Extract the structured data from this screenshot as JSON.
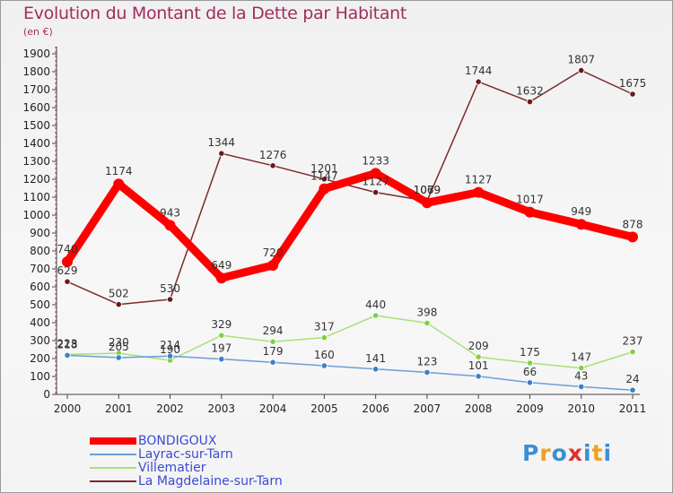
{
  "header": {
    "title": "Evolution du Montant de la Dette par Habitant",
    "unit": "(en €)"
  },
  "logo": {
    "letters": [
      "P",
      "r",
      "o",
      "x",
      "i",
      "t",
      "i"
    ],
    "colors": [
      "#3b8fd4",
      "#f0a020",
      "#3b8fd4",
      "#e03030",
      "#3b8fd4",
      "#f0a020",
      "#3b8fd4"
    ]
  },
  "chart_data": {
    "type": "line",
    "title": "Evolution du Montant de la Dette par Habitant",
    "ylabel": "(en €)",
    "xlabel": "",
    "x": [
      "2000",
      "2001",
      "2002",
      "2003",
      "2004",
      "2005",
      "2006",
      "2007",
      "2008",
      "2009",
      "2010",
      "2011"
    ],
    "ylim": [
      0,
      1900
    ],
    "yticks": [
      0,
      100,
      200,
      300,
      400,
      500,
      600,
      700,
      800,
      900,
      1000,
      1100,
      1200,
      1300,
      1400,
      1500,
      1600,
      1700,
      1800,
      1900
    ],
    "grid": false,
    "legend_position": "bottom-left",
    "series": [
      {
        "name": "BONDIGOUX",
        "color": "#ff0000",
        "marker": "#ff0000",
        "values": [
          740,
          1174,
          943,
          649,
          720,
          1147,
          1233,
          1069,
          1127,
          1017,
          949,
          878
        ]
      },
      {
        "name": "Layrac-sur-Tarn",
        "color": "#6b9ed6",
        "marker": "#3e7fc8",
        "values": [
          218,
          205,
          214,
          197,
          179,
          160,
          141,
          123,
          101,
          66,
          43,
          24
        ]
      },
      {
        "name": "Villematier",
        "color": "#a8e07a",
        "marker": "#7fd042",
        "values": [
          223,
          230,
          190,
          329,
          294,
          317,
          440,
          398,
          209,
          175,
          147,
          237
        ]
      },
      {
        "name": "La Magdelaine-sur-Tarn",
        "color": "#7a2a2a",
        "marker": "#6a1a1a",
        "values": [
          629,
          502,
          530,
          1344,
          1276,
          1201,
          1127,
          1079,
          1744,
          1632,
          1807,
          1675
        ]
      }
    ]
  }
}
